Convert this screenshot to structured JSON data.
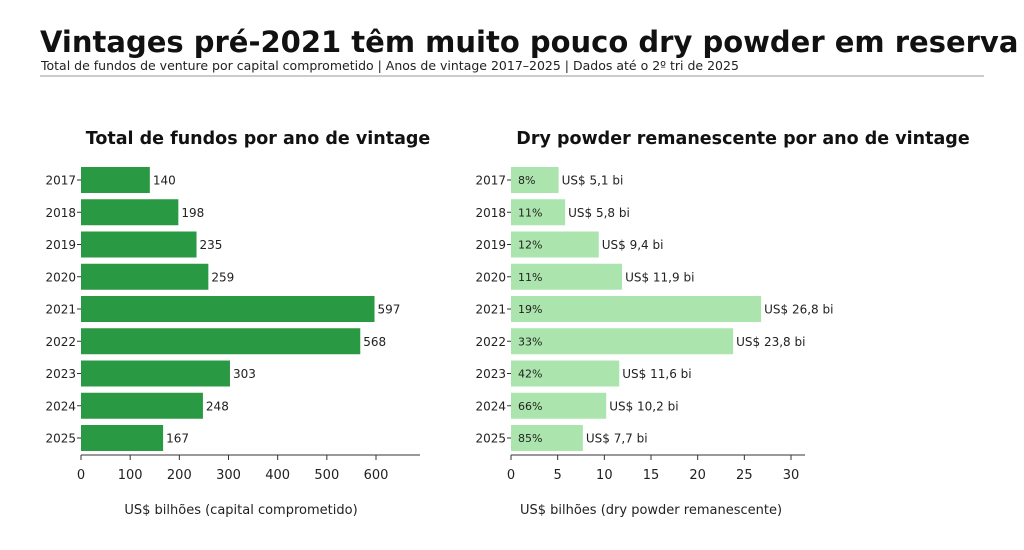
{
  "title": "Vintages pré-2021 têm muito pouco dry powder em reserva",
  "subtitle": "Total de fundos de venture por capital comprometido | Anos de vintage 2017–2025 | Dados até o 2º tri de 2025",
  "colors": {
    "left_bar": "#2a9944",
    "right_bar": "#abe5ad"
  },
  "chart_data": [
    {
      "type": "bar",
      "orientation": "horizontal",
      "title": "Total de fundos por ano de vintage",
      "xlabel": "US$ bilhões (capital comprometido)",
      "ylabel": "",
      "categories": [
        "2017",
        "2018",
        "2019",
        "2020",
        "2021",
        "2022",
        "2023",
        "2024",
        "2025"
      ],
      "values": [
        140,
        198,
        235,
        259,
        597,
        568,
        303,
        248,
        167
      ],
      "data_labels": [
        "140",
        "198",
        "235",
        "259",
        "597",
        "568",
        "303",
        "248",
        "167"
      ],
      "xlim": [
        0,
        650
      ],
      "xticks": [
        0,
        100,
        200,
        300,
        400,
        500,
        600
      ],
      "xtick_labels": [
        "0",
        "100",
        "200",
        "300",
        "400",
        "500",
        "600"
      ]
    },
    {
      "type": "bar",
      "orientation": "horizontal",
      "title": "Dry powder remanescente por ano de vintage",
      "xlabel": "US$ bilhões (dry powder remanescente)",
      "ylabel": "",
      "categories": [
        "2017",
        "2018",
        "2019",
        "2020",
        "2021",
        "2022",
        "2023",
        "2024",
        "2025"
      ],
      "values": [
        5.1,
        5.8,
        9.4,
        11.9,
        26.8,
        23.8,
        11.6,
        10.2,
        7.7
      ],
      "data_labels": [
        "US$ 5,1 bi",
        "US$ 5,8 bi",
        "US$ 9,4 bi",
        "US$ 11,9 bi",
        "US$ 26,8 bi",
        "US$ 23,8 bi",
        "US$ 11,6 bi",
        "US$ 10,2 bi",
        "US$ 7,7 bi"
      ],
      "inner_labels": [
        "8%",
        "11%",
        "12%",
        "11%",
        "19%",
        "33%",
        "42%",
        "66%",
        "85%"
      ],
      "xlim": [
        0,
        32
      ],
      "xticks": [
        0,
        5,
        10,
        15,
        20,
        25,
        30
      ],
      "xtick_labels": [
        "0",
        "5",
        "10",
        "15",
        "20",
        "25",
        "30"
      ]
    }
  ]
}
